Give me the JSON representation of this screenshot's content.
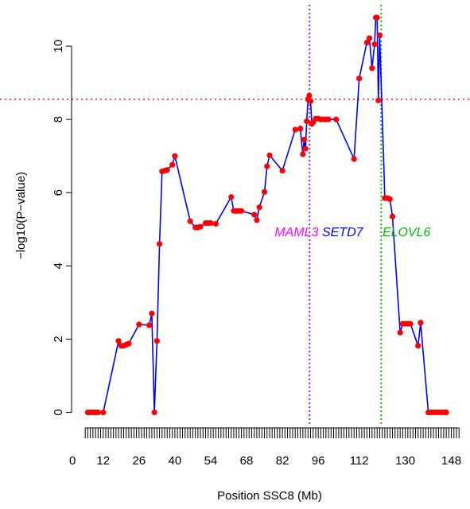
{
  "chart_data": {
    "type": "line",
    "title": "",
    "xlabel": "Position SSC8 (Mb)",
    "ylabel": "−log10(P−value)",
    "xlim": [
      4,
      150
    ],
    "ylim": [
      -0.25,
      11
    ],
    "x_ticks": [
      0,
      12,
      26,
      40,
      54,
      68,
      82,
      96,
      112,
      130,
      148
    ],
    "y_ticks": [
      0,
      2,
      4,
      6,
      8,
      10
    ],
    "minor_tick_range": [
      5,
      151
    ],
    "minor_tick_step": 1,
    "grid": false,
    "line_color": "#0000ff",
    "point_color": "#ff0000",
    "threshold": {
      "y": 8.55,
      "color": "#ff0000",
      "style": "dotted"
    },
    "vlines": [
      {
        "x": 92.6,
        "color": "#a020f0",
        "style": "dotted"
      },
      {
        "x": 120.6,
        "color": "#00bb00",
        "style": "dotted"
      }
    ],
    "annotations": [
      {
        "text": "MAML3",
        "x": 87.5,
        "y": 4.9,
        "color": "#ff00ff"
      },
      {
        "text": "SETD7",
        "x": 105.5,
        "y": 4.9,
        "color": "#0000ff"
      },
      {
        "text": "ELOVL6",
        "x": 130.5,
        "y": 4.9,
        "color": "#00bb00"
      }
    ],
    "series": [
      {
        "x": [
          6,
          7,
          8,
          9,
          10,
          12,
          18,
          19,
          20,
          21,
          22,
          26,
          30,
          31,
          32,
          33,
          34,
          35,
          36,
          37,
          39,
          40,
          46,
          48,
          49,
          50,
          52,
          53,
          54,
          56,
          62,
          63,
          64,
          65,
          66,
          71,
          72,
          73,
          75,
          76,
          77,
          82,
          87,
          89,
          90,
          90.5,
          91,
          91.5,
          92,
          92.5,
          93,
          93.5,
          94,
          95,
          96,
          97,
          98,
          99,
          100,
          103,
          110,
          112,
          115,
          116,
          117,
          118,
          118.5,
          119,
          119.5,
          120,
          122,
          123,
          124,
          125,
          128,
          129,
          130,
          131,
          132,
          135,
          136,
          139,
          140,
          141,
          142,
          143,
          144,
          145,
          146
        ],
        "y": [
          0,
          0,
          0,
          0,
          0,
          0,
          1.95,
          1.82,
          1.82,
          1.85,
          1.88,
          2.4,
          2.38,
          2.7,
          0,
          1.95,
          4.6,
          6.58,
          6.6,
          6.62,
          6.76,
          7.0,
          5.22,
          5.05,
          5.05,
          5.07,
          5.17,
          5.17,
          5.17,
          5.15,
          5.88,
          5.5,
          5.5,
          5.5,
          5.5,
          5.4,
          5.25,
          5.6,
          6.02,
          6.72,
          7.02,
          6.6,
          7.72,
          7.75,
          7.05,
          7.45,
          7.2,
          7.95,
          8.55,
          8.65,
          8.5,
          7.88,
          7.92,
          8.02,
          8.02,
          8.0,
          8.0,
          8.0,
          8.0,
          8.0,
          6.92,
          9.12,
          10.1,
          10.22,
          9.4,
          10.05,
          10.78,
          10.78,
          8.52,
          10.3,
          5.85,
          5.85,
          5.82,
          5.35,
          2.18,
          2.42,
          2.42,
          2.42,
          2.42,
          1.82,
          2.45,
          0,
          0,
          0,
          0,
          0,
          0,
          0,
          0
        ]
      }
    ]
  }
}
